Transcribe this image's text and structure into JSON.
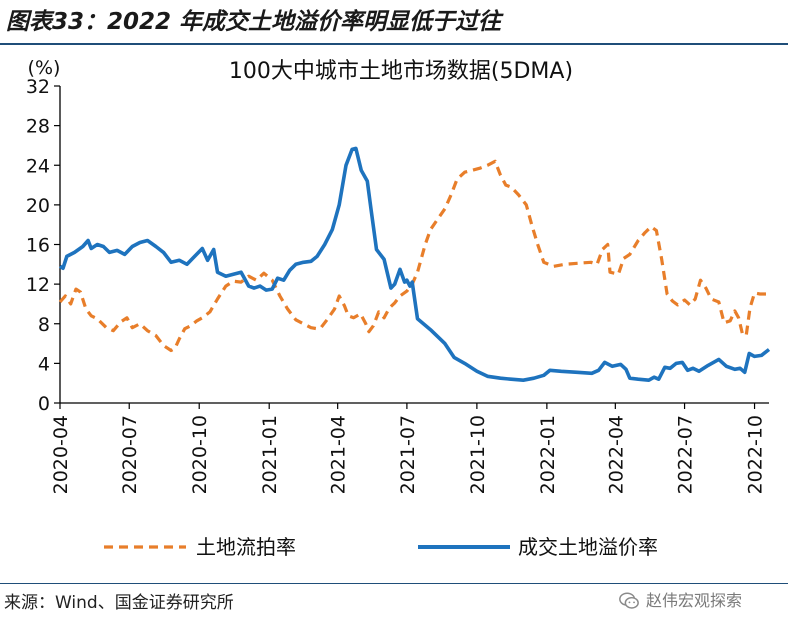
{
  "figure_title": "图表33：2022 年成交土地溢价率明显低于过往",
  "source_text": "来源：Wind、国金证券研究所",
  "watermark": "赵伟宏观探索",
  "chart_data": {
    "type": "line",
    "title": "100大中城市土地市场数据(5DMA)",
    "unit_label": "(%)",
    "ylim": [
      0,
      32
    ],
    "yticks": [
      0,
      4,
      8,
      12,
      16,
      20,
      24,
      28,
      32
    ],
    "x_ticks": [
      "2020-04",
      "2020-07",
      "2020-10",
      "2021-01",
      "2021-04",
      "2021-07",
      "2021-10",
      "2022-01",
      "2022-04",
      "2022-07",
      "2022-10"
    ],
    "x_range": [
      "2020-04-01",
      "2022-10-20"
    ],
    "grid": false,
    "legend_position": "bottom",
    "series": [
      {
        "name": "土地流拍率",
        "color": "#E87E2A",
        "style": "dashed",
        "points": [
          [
            "2020-04-01",
            10.2
          ],
          [
            "2020-04-08",
            10.8
          ],
          [
            "2020-04-15",
            10.0
          ],
          [
            "2020-04-22",
            11.5
          ],
          [
            "2020-04-28",
            11.2
          ],
          [
            "2020-05-05",
            9.5
          ],
          [
            "2020-05-12",
            8.8
          ],
          [
            "2020-05-20",
            8.5
          ],
          [
            "2020-06-01",
            7.6
          ],
          [
            "2020-06-10",
            7.3
          ],
          [
            "2020-06-20",
            8.2
          ],
          [
            "2020-06-28",
            8.6
          ],
          [
            "2020-07-05",
            7.6
          ],
          [
            "2020-07-15",
            8.0
          ],
          [
            "2020-07-25",
            7.3
          ],
          [
            "2020-08-05",
            6.8
          ],
          [
            "2020-08-15",
            5.8
          ],
          [
            "2020-08-25",
            5.3
          ],
          [
            "2020-08-30",
            5.5
          ],
          [
            "2020-09-05",
            6.5
          ],
          [
            "2020-09-12",
            7.5
          ],
          [
            "2020-09-20",
            7.8
          ],
          [
            "2020-09-28",
            8.3
          ],
          [
            "2020-10-05",
            8.6
          ],
          [
            "2020-10-15",
            9.2
          ],
          [
            "2020-10-25",
            10.5
          ],
          [
            "2020-11-05",
            11.8
          ],
          [
            "2020-11-15",
            12.3
          ],
          [
            "2020-11-25",
            12.2
          ],
          [
            "2020-12-05",
            12.8
          ],
          [
            "2020-12-15",
            12.4
          ],
          [
            "2020-12-25",
            13.1
          ],
          [
            "2021-01-05",
            12.4
          ],
          [
            "2021-01-15",
            10.8
          ],
          [
            "2021-01-25",
            9.5
          ],
          [
            "2021-02-05",
            8.4
          ],
          [
            "2021-02-15",
            8.0
          ],
          [
            "2021-02-25",
            7.6
          ],
          [
            "2021-03-05",
            7.5
          ],
          [
            "2021-03-10",
            7.6
          ],
          [
            "2021-03-18",
            8.4
          ],
          [
            "2021-03-28",
            9.5
          ],
          [
            "2021-04-03",
            10.8
          ],
          [
            "2021-04-10",
            9.8
          ],
          [
            "2021-04-15",
            8.8
          ],
          [
            "2021-04-22",
            8.6
          ],
          [
            "2021-05-01",
            9.0
          ],
          [
            "2021-05-08",
            8.0
          ],
          [
            "2021-05-12",
            7.2
          ],
          [
            "2021-05-18",
            7.8
          ],
          [
            "2021-05-25",
            9.2
          ],
          [
            "2021-06-01",
            8.6
          ],
          [
            "2021-06-08",
            9.6
          ],
          [
            "2021-06-15",
            10.1
          ],
          [
            "2021-06-22",
            10.8
          ],
          [
            "2021-07-01",
            11.3
          ],
          [
            "2021-07-08",
            12.0
          ],
          [
            "2021-07-15",
            13.2
          ],
          [
            "2021-07-25",
            16.0
          ],
          [
            "2021-08-01",
            17.5
          ],
          [
            "2021-08-10",
            18.5
          ],
          [
            "2021-08-20",
            19.6
          ],
          [
            "2021-08-28",
            21.0
          ],
          [
            "2021-09-05",
            22.6
          ],
          [
            "2021-09-15",
            23.3
          ],
          [
            "2021-09-25",
            23.5
          ],
          [
            "2021-10-05",
            23.7
          ],
          [
            "2021-10-15",
            24.0
          ],
          [
            "2021-10-25",
            24.4
          ],
          [
            "2021-11-01",
            23.0
          ],
          [
            "2021-11-08",
            22.0
          ],
          [
            "2021-11-15",
            21.8
          ],
          [
            "2021-11-25",
            21.0
          ],
          [
            "2021-12-05",
            20.0
          ],
          [
            "2021-12-12",
            18.0
          ],
          [
            "2021-12-20",
            16.0
          ],
          [
            "2021-12-28",
            14.2
          ],
          [
            "2022-01-10",
            13.8
          ],
          [
            "2022-01-25",
            14.0
          ],
          [
            "2022-02-10",
            14.1
          ],
          [
            "2022-02-28",
            14.2
          ],
          [
            "2022-03-08",
            14.0
          ],
          [
            "2022-03-15",
            15.5
          ],
          [
            "2022-03-22",
            16.0
          ],
          [
            "2022-03-25",
            13.2
          ],
          [
            "2022-04-05",
            13.0
          ],
          [
            "2022-04-12",
            14.6
          ],
          [
            "2022-04-20",
            15.0
          ],
          [
            "2022-05-01",
            16.4
          ],
          [
            "2022-05-10",
            17.2
          ],
          [
            "2022-05-18",
            17.8
          ],
          [
            "2022-05-25",
            17.4
          ],
          [
            "2022-06-01",
            14.5
          ],
          [
            "2022-06-08",
            11.0
          ],
          [
            "2022-06-15",
            10.3
          ],
          [
            "2022-06-22",
            9.9
          ],
          [
            "2022-07-01",
            10.4
          ],
          [
            "2022-07-08",
            9.9
          ],
          [
            "2022-07-15",
            10.5
          ],
          [
            "2022-07-22",
            12.4
          ],
          [
            "2022-07-29",
            11.6
          ],
          [
            "2022-08-05",
            10.5
          ],
          [
            "2022-08-15",
            10.2
          ],
          [
            "2022-08-22",
            8.1
          ],
          [
            "2022-08-30",
            8.3
          ],
          [
            "2022-09-05",
            9.3
          ],
          [
            "2022-09-10",
            8.6
          ],
          [
            "2022-09-15",
            7.0
          ],
          [
            "2022-09-20",
            6.8
          ],
          [
            "2022-09-25",
            9.6
          ],
          [
            "2022-10-01",
            11.1
          ],
          [
            "2022-10-08",
            11.0
          ],
          [
            "2022-10-20",
            11.0
          ]
        ]
      },
      {
        "name": "成交土地溢价率",
        "color": "#1E73BE",
        "style": "solid",
        "points": [
          [
            "2020-04-01",
            13.8
          ],
          [
            "2020-04-05",
            13.6
          ],
          [
            "2020-04-10",
            14.8
          ],
          [
            "2020-04-20",
            15.2
          ],
          [
            "2020-05-01",
            15.8
          ],
          [
            "2020-05-08",
            16.4
          ],
          [
            "2020-05-12",
            15.6
          ],
          [
            "2020-05-20",
            16.0
          ],
          [
            "2020-05-28",
            15.8
          ],
          [
            "2020-06-05",
            15.2
          ],
          [
            "2020-06-15",
            15.4
          ],
          [
            "2020-06-25",
            15.0
          ],
          [
            "2020-07-05",
            15.8
          ],
          [
            "2020-07-15",
            16.2
          ],
          [
            "2020-07-25",
            16.4
          ],
          [
            "2020-08-05",
            15.8
          ],
          [
            "2020-08-15",
            15.2
          ],
          [
            "2020-08-25",
            14.2
          ],
          [
            "2020-09-05",
            14.4
          ],
          [
            "2020-09-15",
            14.0
          ],
          [
            "2020-09-25",
            14.8
          ],
          [
            "2020-10-05",
            15.6
          ],
          [
            "2020-10-12",
            14.4
          ],
          [
            "2020-10-20",
            15.5
          ],
          [
            "2020-10-25",
            13.2
          ],
          [
            "2020-11-05",
            12.8
          ],
          [
            "2020-11-15",
            13.0
          ],
          [
            "2020-11-25",
            13.2
          ],
          [
            "2020-12-05",
            11.8
          ],
          [
            "2020-12-12",
            11.6
          ],
          [
            "2020-12-20",
            11.8
          ],
          [
            "2020-12-28",
            11.4
          ],
          [
            "2021-01-05",
            11.5
          ],
          [
            "2021-01-12",
            12.6
          ],
          [
            "2021-01-20",
            12.4
          ],
          [
            "2021-01-28",
            13.4
          ],
          [
            "2021-02-05",
            14.0
          ],
          [
            "2021-02-15",
            14.2
          ],
          [
            "2021-02-25",
            14.3
          ],
          [
            "2021-03-05",
            14.8
          ],
          [
            "2021-03-15",
            16.0
          ],
          [
            "2021-03-25",
            17.5
          ],
          [
            "2021-04-03",
            20.0
          ],
          [
            "2021-04-12",
            24.0
          ],
          [
            "2021-04-20",
            25.6
          ],
          [
            "2021-04-25",
            25.7
          ],
          [
            "2021-05-02",
            23.5
          ],
          [
            "2021-05-10",
            22.4
          ],
          [
            "2021-05-15",
            19.5
          ],
          [
            "2021-05-22",
            15.5
          ],
          [
            "2021-06-01",
            14.5
          ],
          [
            "2021-06-10",
            11.6
          ],
          [
            "2021-06-15",
            12.0
          ],
          [
            "2021-06-22",
            13.5
          ],
          [
            "2021-06-28",
            12.2
          ],
          [
            "2021-07-01",
            12.4
          ],
          [
            "2021-07-05",
            11.8
          ],
          [
            "2021-07-08",
            12.2
          ],
          [
            "2021-07-15",
            8.5
          ],
          [
            "2021-08-01",
            7.4
          ],
          [
            "2021-08-20",
            6.0
          ],
          [
            "2021-09-01",
            4.6
          ],
          [
            "2021-09-15",
            4.0
          ],
          [
            "2021-10-01",
            3.2
          ],
          [
            "2021-10-15",
            2.7
          ],
          [
            "2021-11-01",
            2.5
          ],
          [
            "2021-11-15",
            2.4
          ],
          [
            "2021-12-01",
            2.3
          ],
          [
            "2021-12-15",
            2.5
          ],
          [
            "2021-12-28",
            2.8
          ],
          [
            "2022-01-05",
            3.3
          ],
          [
            "2022-01-20",
            3.2
          ],
          [
            "2022-02-10",
            3.1
          ],
          [
            "2022-03-01",
            3.0
          ],
          [
            "2022-03-10",
            3.3
          ],
          [
            "2022-03-18",
            4.1
          ],
          [
            "2022-03-28",
            3.7
          ],
          [
            "2022-04-08",
            3.9
          ],
          [
            "2022-04-15",
            3.4
          ],
          [
            "2022-04-20",
            2.5
          ],
          [
            "2022-05-01",
            2.4
          ],
          [
            "2022-05-15",
            2.3
          ],
          [
            "2022-05-22",
            2.6
          ],
          [
            "2022-05-28",
            2.4
          ],
          [
            "2022-06-05",
            3.6
          ],
          [
            "2022-06-12",
            3.5
          ],
          [
            "2022-06-20",
            4.0
          ],
          [
            "2022-06-28",
            4.1
          ],
          [
            "2022-07-05",
            3.3
          ],
          [
            "2022-07-12",
            3.5
          ],
          [
            "2022-07-20",
            3.2
          ],
          [
            "2022-08-01",
            3.8
          ],
          [
            "2022-08-15",
            4.4
          ],
          [
            "2022-08-25",
            3.7
          ],
          [
            "2022-09-05",
            3.4
          ],
          [
            "2022-09-12",
            3.5
          ],
          [
            "2022-09-18",
            3.1
          ],
          [
            "2022-09-24",
            5.0
          ],
          [
            "2022-10-01",
            4.7
          ],
          [
            "2022-10-10",
            4.8
          ],
          [
            "2022-10-20",
            5.4
          ]
        ]
      }
    ]
  }
}
